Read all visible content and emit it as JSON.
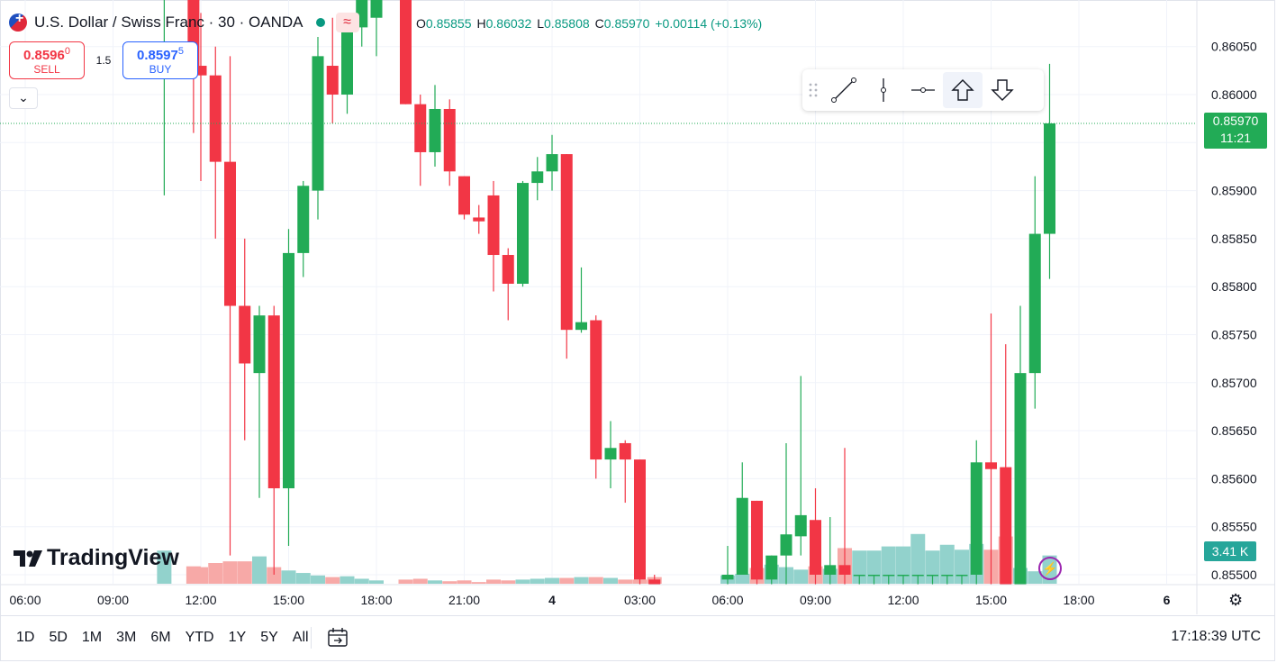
{
  "header": {
    "symbol_title": "U.S. Dollar / Swiss Franc · 30 · OANDA",
    "wave_glyph": "≈",
    "ohlc": {
      "o_label": "O",
      "o_value": "0.85855",
      "h_label": "H",
      "h_value": "0.86032",
      "l_label": "L",
      "l_value": "0.85808",
      "c_label": "C",
      "c_value": "0.85970",
      "change": "+0.00114 (+0.13%)"
    }
  },
  "trade": {
    "sell_price_main": "0.8596",
    "sell_price_sup": "0",
    "sell_label": "SELL",
    "spread": "1.5",
    "buy_price_main": "0.8597",
    "buy_price_sup": "5",
    "buy_label": "BUY"
  },
  "collapse_glyph": "⌄",
  "drawing_toolbar": {
    "tools": [
      {
        "name": "grip-icon",
        "active": false
      },
      {
        "name": "trend-line-icon",
        "active": false
      },
      {
        "name": "vertical-line-icon",
        "active": false
      },
      {
        "name": "horizontal-ray-icon",
        "active": false
      },
      {
        "name": "arrow-up-icon",
        "active": true
      },
      {
        "name": "arrow-down-icon",
        "active": false
      }
    ]
  },
  "price_tag": {
    "price": "0.85970",
    "countdown": "11:21"
  },
  "volume_tag": "3.41 K",
  "logo_text": "TradingView",
  "bottom": {
    "ranges": [
      "1D",
      "5D",
      "1M",
      "3M",
      "6M",
      "YTD",
      "1Y",
      "5Y",
      "All"
    ],
    "clock": "17:18:39 UTC"
  },
  "colors": {
    "up": "#22ab56",
    "down": "#f23645",
    "vol_up": "#92d2cc",
    "vol_down": "#f7a9a7",
    "price_line": "#22ab56"
  },
  "chart_data": {
    "type": "candlestick",
    "symbol": "USDCHF",
    "interval": "30",
    "y_ticks": [
      "0.86050",
      "0.86000",
      "0.85950",
      "0.85900",
      "0.85850",
      "0.85800",
      "0.85750",
      "0.85700",
      "0.85650",
      "0.85600",
      "0.85550",
      "0.85500"
    ],
    "ylim": [
      0.8549,
      0.8609
    ],
    "x_ticks": [
      {
        "label": "06:00",
        "t": 0
      },
      {
        "label": "09:00",
        "t": 6
      },
      {
        "label": "12:00",
        "t": 12
      },
      {
        "label": "15:00",
        "t": 18
      },
      {
        "label": "18:00",
        "t": 24
      },
      {
        "label": "21:00",
        "t": 30
      },
      {
        "label": "4",
        "t": 36,
        "bold": true
      },
      {
        "label": "03:00",
        "t": 42
      },
      {
        "label": "06:00",
        "t": 48
      },
      {
        "label": "09:00",
        "t": 54
      },
      {
        "label": "12:00",
        "t": 60
      },
      {
        "label": "15:00",
        "t": 66
      },
      {
        "label": "18:00",
        "t": 72
      },
      {
        "label": "6",
        "t": 78,
        "bold": true
      }
    ],
    "last_price": 0.8597,
    "volume_max": 10000,
    "candles": [
      {
        "t": 9.5,
        "o": 0.861,
        "h": 0.861,
        "l": 0.85895,
        "c": 0.861,
        "v": 4000
      },
      {
        "t": 11.5,
        "o": 0.861,
        "h": 0.861,
        "l": 0.8596,
        "c": 0.8603,
        "v": 2100
      },
      {
        "t": 12,
        "o": 0.8603,
        "h": 0.86085,
        "l": 0.8591,
        "c": 0.8602,
        "v": 2000
      },
      {
        "t": 13,
        "o": 0.8602,
        "h": 0.8605,
        "l": 0.8585,
        "c": 0.8593,
        "v": 2500
      },
      {
        "t": 14,
        "o": 0.8593,
        "h": 0.8604,
        "l": 0.8552,
        "c": 0.8578,
        "v": 2700
      },
      {
        "t": 15,
        "o": 0.8578,
        "h": 0.8585,
        "l": 0.8564,
        "c": 0.8572,
        "v": 2700
      },
      {
        "t": 16,
        "o": 0.8571,
        "h": 0.8578,
        "l": 0.8558,
        "c": 0.8577,
        "v": 3300
      },
      {
        "t": 17,
        "o": 0.8577,
        "h": 0.8578,
        "l": 0.855,
        "c": 0.8559,
        "v": 2000
      },
      {
        "t": 18,
        "o": 0.8559,
        "h": 0.8586,
        "l": 0.8553,
        "c": 0.85835,
        "v": 1600
      },
      {
        "t": 19,
        "o": 0.85835,
        "h": 0.8591,
        "l": 0.8581,
        "c": 0.85905,
        "v": 1300
      },
      {
        "t": 20,
        "o": 0.859,
        "h": 0.8606,
        "l": 0.8587,
        "c": 0.8604,
        "v": 1000
      },
      {
        "t": 21,
        "o": 0.8603,
        "h": 0.8608,
        "l": 0.8597,
        "c": 0.86,
        "v": 800
      },
      {
        "t": 22,
        "o": 0.86,
        "h": 0.8608,
        "l": 0.8598,
        "c": 0.8607,
        "v": 900
      },
      {
        "t": 23,
        "o": 0.8607,
        "h": 0.861,
        "l": 0.8605,
        "c": 0.861,
        "v": 600
      },
      {
        "t": 24,
        "o": 0.8608,
        "h": 0.861,
        "l": 0.8604,
        "c": 0.861,
        "v": 400
      },
      {
        "t": 26,
        "o": 0.861,
        "h": 0.861,
        "l": 0.8599,
        "c": 0.8599,
        "v": 500
      },
      {
        "t": 27,
        "o": 0.8599,
        "h": 0.86,
        "l": 0.85905,
        "c": 0.8594,
        "v": 600
      },
      {
        "t": 28,
        "o": 0.8594,
        "h": 0.8601,
        "l": 0.85925,
        "c": 0.85985,
        "v": 400
      },
      {
        "t": 29,
        "o": 0.85985,
        "h": 0.85995,
        "l": 0.85905,
        "c": 0.8592,
        "v": 300
      },
      {
        "t": 30,
        "o": 0.85915,
        "h": 0.85915,
        "l": 0.8587,
        "c": 0.85875,
        "v": 400
      },
      {
        "t": 31,
        "o": 0.85872,
        "h": 0.85885,
        "l": 0.85855,
        "c": 0.85868,
        "v": 200
      },
      {
        "t": 32,
        "o": 0.85895,
        "h": 0.8591,
        "l": 0.85795,
        "c": 0.85833,
        "v": 500
      },
      {
        "t": 33,
        "o": 0.85833,
        "h": 0.8584,
        "l": 0.85765,
        "c": 0.85803,
        "v": 400
      },
      {
        "t": 34,
        "o": 0.85803,
        "h": 0.8591,
        "l": 0.858,
        "c": 0.85908,
        "v": 500
      },
      {
        "t": 35,
        "o": 0.85908,
        "h": 0.85935,
        "l": 0.8589,
        "c": 0.8592,
        "v": 600
      },
      {
        "t": 36,
        "o": 0.8592,
        "h": 0.85958,
        "l": 0.859,
        "c": 0.85938,
        "v": 700
      },
      {
        "t": 37,
        "o": 0.85938,
        "h": 0.85938,
        "l": 0.85725,
        "c": 0.85755,
        "v": 700
      },
      {
        "t": 38,
        "o": 0.85755,
        "h": 0.8582,
        "l": 0.85752,
        "c": 0.85763,
        "v": 800
      },
      {
        "t": 39,
        "o": 0.85765,
        "h": 0.8577,
        "l": 0.856,
        "c": 0.8562,
        "v": 800
      },
      {
        "t": 40,
        "o": 0.8562,
        "h": 0.8566,
        "l": 0.8559,
        "c": 0.85632,
        "v": 700
      },
      {
        "t": 41,
        "o": 0.85637,
        "h": 0.8564,
        "l": 0.85575,
        "c": 0.8562,
        "v": 500
      },
      {
        "t": 42,
        "o": 0.8562,
        "h": 0.8562,
        "l": 0.8549,
        "c": 0.85495,
        "v": 500
      },
      {
        "t": 43,
        "o": 0.85495,
        "h": 0.855,
        "l": 0.8549,
        "c": 0.8549,
        "v": 800
      },
      {
        "t": 48,
        "o": 0.85495,
        "h": 0.8553,
        "l": 0.8549,
        "c": 0.855,
        "v": 1000
      },
      {
        "t": 49,
        "o": 0.855,
        "h": 0.85617,
        "l": 0.855,
        "c": 0.8558,
        "v": 1200
      },
      {
        "t": 50,
        "o": 0.85577,
        "h": 0.85577,
        "l": 0.8549,
        "c": 0.85495,
        "v": 1900
      },
      {
        "t": 51,
        "o": 0.85495,
        "h": 0.8552,
        "l": 0.8549,
        "c": 0.8552,
        "v": 2300
      },
      {
        "t": 52,
        "o": 0.8552,
        "h": 0.85637,
        "l": 0.8549,
        "c": 0.85542,
        "v": 2000
      },
      {
        "t": 53,
        "o": 0.8554,
        "h": 0.85707,
        "l": 0.8552,
        "c": 0.85562,
        "v": 1700
      },
      {
        "t": 54,
        "o": 0.85557,
        "h": 0.8559,
        "l": 0.8549,
        "c": 0.855,
        "v": 2100
      },
      {
        "t": 55,
        "o": 0.855,
        "h": 0.8556,
        "l": 0.8549,
        "c": 0.8551,
        "v": 1800
      },
      {
        "t": 56,
        "o": 0.8551,
        "h": 0.85632,
        "l": 0.8549,
        "c": 0.855,
        "v": 4300
      },
      {
        "t": 57,
        "o": 0.855,
        "h": 0.855,
        "l": 0.8549,
        "c": 0.855,
        "v": 4000
      },
      {
        "t": 58,
        "o": 0.855,
        "h": 0.855,
        "l": 0.8549,
        "c": 0.855,
        "v": 4000
      },
      {
        "t": 59,
        "o": 0.855,
        "h": 0.855,
        "l": 0.8549,
        "c": 0.855,
        "v": 4500
      },
      {
        "t": 60,
        "o": 0.855,
        "h": 0.855,
        "l": 0.8549,
        "c": 0.855,
        "v": 4500
      },
      {
        "t": 61,
        "o": 0.855,
        "h": 0.855,
        "l": 0.8549,
        "c": 0.855,
        "v": 6000
      },
      {
        "t": 62,
        "o": 0.855,
        "h": 0.855,
        "l": 0.8549,
        "c": 0.855,
        "v": 4000
      },
      {
        "t": 63,
        "o": 0.855,
        "h": 0.855,
        "l": 0.8549,
        "c": 0.855,
        "v": 4700
      },
      {
        "t": 64,
        "o": 0.855,
        "h": 0.855,
        "l": 0.8549,
        "c": 0.855,
        "v": 4100
      },
      {
        "t": 65,
        "o": 0.855,
        "h": 0.8564,
        "l": 0.8549,
        "c": 0.85617,
        "v": 4800
      },
      {
        "t": 66,
        "o": 0.85617,
        "h": 0.85772,
        "l": 0.8549,
        "c": 0.8561,
        "v": 4100
      },
      {
        "t": 67,
        "o": 0.85612,
        "h": 0.8574,
        "l": 0.8549,
        "c": 0.8549,
        "v": 5700
      },
      {
        "t": 68,
        "o": 0.8549,
        "h": 0.8578,
        "l": 0.8549,
        "c": 0.8571,
        "v": 1900
      },
      {
        "t": 69,
        "o": 0.8571,
        "h": 0.85915,
        "l": 0.85673,
        "c": 0.85855,
        "v": 1500
      },
      {
        "t": 70,
        "o": 0.85855,
        "h": 0.86032,
        "l": 0.85808,
        "c": 0.8597,
        "v": 3410
      }
    ]
  }
}
